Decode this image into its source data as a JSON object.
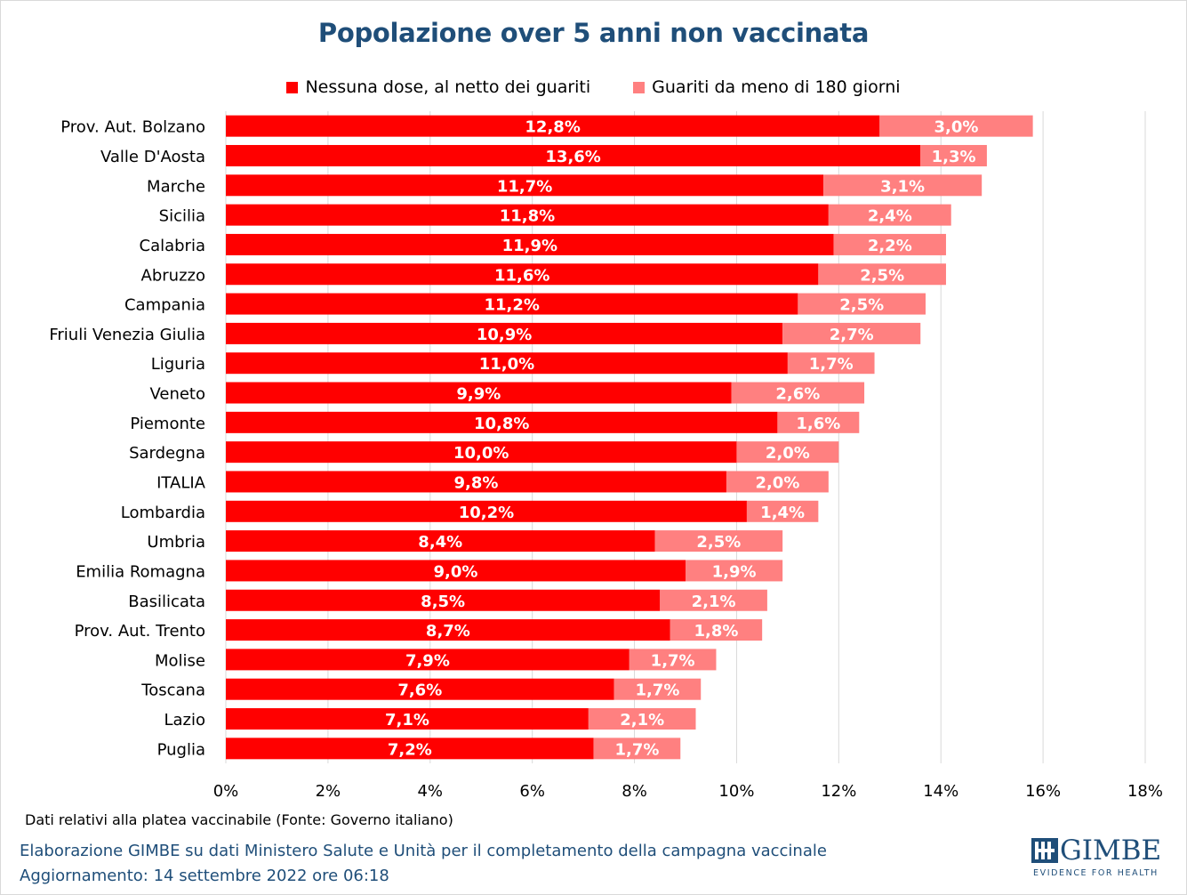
{
  "footer": {
    "note": "Dati relativi alla platea vaccinabile (Fonte: Governo italiano)",
    "source": "Elaborazione GIMBE su dati Ministero Salute e Unità per il completamento della campagna vaccinale",
    "update": "Aggiornamento: 14 settembre 2022 ore 06:18"
  },
  "logo": {
    "word": "GIMBE",
    "tagline": "EVIDENCE FOR HEALTH"
  },
  "chart_data": {
    "type": "bar",
    "orientation": "horizontal",
    "stacked": true,
    "title": "Popolazione over 5 anni non vaccinata",
    "legend_position": "top",
    "grid": true,
    "xlim": [
      0,
      18
    ],
    "x_ticks": [
      "0%",
      "2%",
      "4%",
      "6%",
      "8%",
      "10%",
      "12%",
      "14%",
      "16%",
      "18%"
    ],
    "x_tick_values": [
      0,
      2,
      4,
      6,
      8,
      10,
      12,
      14,
      16,
      18
    ],
    "categories": [
      "Prov. Aut. Bolzano",
      "Valle D'Aosta",
      "Marche",
      "Sicilia",
      "Calabria",
      "Abruzzo",
      "Campania",
      "Friuli Venezia Giulia",
      "Liguria",
      "Veneto",
      "Piemonte",
      "Sardegna",
      "ITALIA",
      "Lombardia",
      "Umbria",
      "Emilia Romagna",
      "Basilicata",
      "Prov. Aut. Trento",
      "Molise",
      "Toscana",
      "Lazio",
      "Puglia"
    ],
    "series": [
      {
        "name": "Nessuna dose, al netto dei guariti",
        "color": "#ff0000",
        "values": [
          12.8,
          13.6,
          11.7,
          11.8,
          11.9,
          11.6,
          11.2,
          10.9,
          11.0,
          9.9,
          10.8,
          10.0,
          9.8,
          10.2,
          8.4,
          9.0,
          8.5,
          8.7,
          7.9,
          7.6,
          7.1,
          7.2
        ],
        "labels": [
          "12,8%",
          "13,6%",
          "11,7%",
          "11,8%",
          "11,9%",
          "11,6%",
          "11,2%",
          "10,9%",
          "11,0%",
          "9,9%",
          "10,8%",
          "10,0%",
          "9,8%",
          "10,2%",
          "8,4%",
          "9,0%",
          "8,5%",
          "8,7%",
          "7,9%",
          "7,6%",
          "7,1%",
          "7,2%"
        ]
      },
      {
        "name": "Guariti da meno di 180 giorni",
        "color": "#ff8080",
        "values": [
          3.0,
          1.3,
          3.1,
          2.4,
          2.2,
          2.5,
          2.5,
          2.7,
          1.7,
          2.6,
          1.6,
          2.0,
          2.0,
          1.4,
          2.5,
          1.9,
          2.1,
          1.8,
          1.7,
          1.7,
          2.1,
          1.7
        ],
        "labels": [
          "3,0%",
          "1,3%",
          "3,1%",
          "2,4%",
          "2,2%",
          "2,5%",
          "2,5%",
          "2,7%",
          "1,7%",
          "2,6%",
          "1,6%",
          "2,0%",
          "2,0%",
          "1,4%",
          "2,5%",
          "1,9%",
          "2,1%",
          "1,8%",
          "1,7%",
          "1,7%",
          "2,1%",
          "1,7%"
        ]
      }
    ]
  }
}
